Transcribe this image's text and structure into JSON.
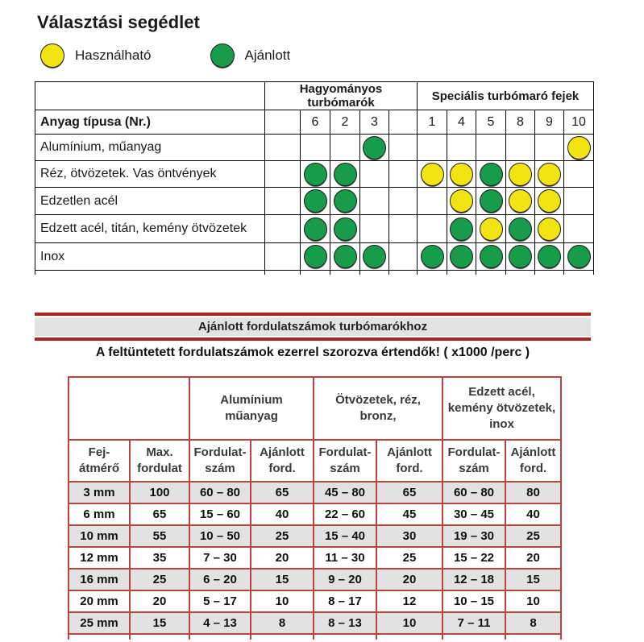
{
  "title": "Választási segédlet",
  "legend": {
    "usable": {
      "label": "Használható",
      "color": "#f2e412"
    },
    "recommended": {
      "label": "Ajánlott",
      "color": "#189c4c"
    }
  },
  "selection_table": {
    "corner_label": "Anyag típusa (Nr.)",
    "groups": [
      {
        "label": "Hagyományos turbómarók",
        "span": 5
      },
      {
        "label": "Speciális turbómaró fejek",
        "span": 6
      }
    ],
    "columns": [
      "",
      "6",
      "2",
      "3",
      "",
      "1",
      "4",
      "5",
      "8",
      "9",
      "10"
    ],
    "cell_codes": {
      "A": "recommended",
      "H": "usable"
    },
    "rows": [
      {
        "label": "Alumínium, műanyag",
        "cells": [
          "",
          "",
          "",
          "A",
          "",
          "",
          "",
          "",
          "",
          "",
          "H"
        ]
      },
      {
        "label": "Réz, ötvözetek. Vas öntvények",
        "cells": [
          "",
          "A",
          "A",
          "",
          "",
          "H",
          "H",
          "A",
          "H",
          "H",
          ""
        ]
      },
      {
        "label": "Edzetlen acél",
        "cells": [
          "",
          "A",
          "A",
          "",
          "",
          "",
          "H",
          "A",
          "H",
          "H",
          ""
        ]
      },
      {
        "label": "Edzett acél, titán, kemény ötvözetek",
        "cells": [
          "",
          "A",
          "A",
          "",
          "",
          "",
          "A",
          "H",
          "A",
          "H",
          ""
        ]
      },
      {
        "label": "Inox",
        "cells": [
          "",
          "A",
          "A",
          "A",
          "",
          "A",
          "A",
          "A",
          "A",
          "A",
          "A"
        ]
      }
    ]
  },
  "speed_section": {
    "banner": "Ajánlott fordulatszámok turbómarókhoz",
    "note": "A feltüntetett fordulatszámok ezerrel szorozva értendők! ( x1000 /perc )"
  },
  "speed_table": {
    "groups": [
      {
        "label": "Alumínium\nműanyag"
      },
      {
        "label": "Ötvözetek, réz,\nbronz,"
      },
      {
        "label": "Edzett acél,\nkemény ötvözetek,\ninox"
      }
    ],
    "subheaders": [
      "Fej-\nátmérő",
      "Max.\nfordulat",
      "Fordulat-\nszám",
      "Ajánlott\nford.",
      "Fordulat-\nszám",
      "Ajánlott\nford.",
      "Fordulat-\nszám",
      "Ajánlott\nford."
    ],
    "rows": [
      [
        "3 mm",
        "100",
        "60 – 80",
        "65",
        "45 – 80",
        "65",
        "60 – 80",
        "80"
      ],
      [
        "6 mm",
        "65",
        "15 – 60",
        "40",
        "22 – 60",
        "45",
        "30 – 45",
        "40"
      ],
      [
        "10 mm",
        "55",
        "10 – 50",
        "25",
        "15 – 40",
        "30",
        "19 – 30",
        "25"
      ],
      [
        "12 mm",
        "35",
        "7 – 30",
        "20",
        "11 – 30",
        "25",
        "15 – 22",
        "20"
      ],
      [
        "16 mm",
        "25",
        "6 – 20",
        "15",
        "9 – 20",
        "20",
        "12 – 18",
        "15"
      ],
      [
        "20 mm",
        "20",
        "5 – 17",
        "10",
        "8 – 17",
        "12",
        "10 – 15",
        "10"
      ],
      [
        "25 mm",
        "15",
        "4 – 13",
        "8",
        "8 – 13",
        "10",
        "7 – 11",
        "8"
      ]
    ]
  },
  "colors": {
    "recommended_green": "#189c4c",
    "usable_yellow": "#f2e412",
    "table_border_red": "#b8453f",
    "banner_red": "#ac2525",
    "banner_band_gray": "#e3e3e3",
    "row_stripe_gray": "#e3e2e2",
    "top_table_border": "#000000"
  }
}
